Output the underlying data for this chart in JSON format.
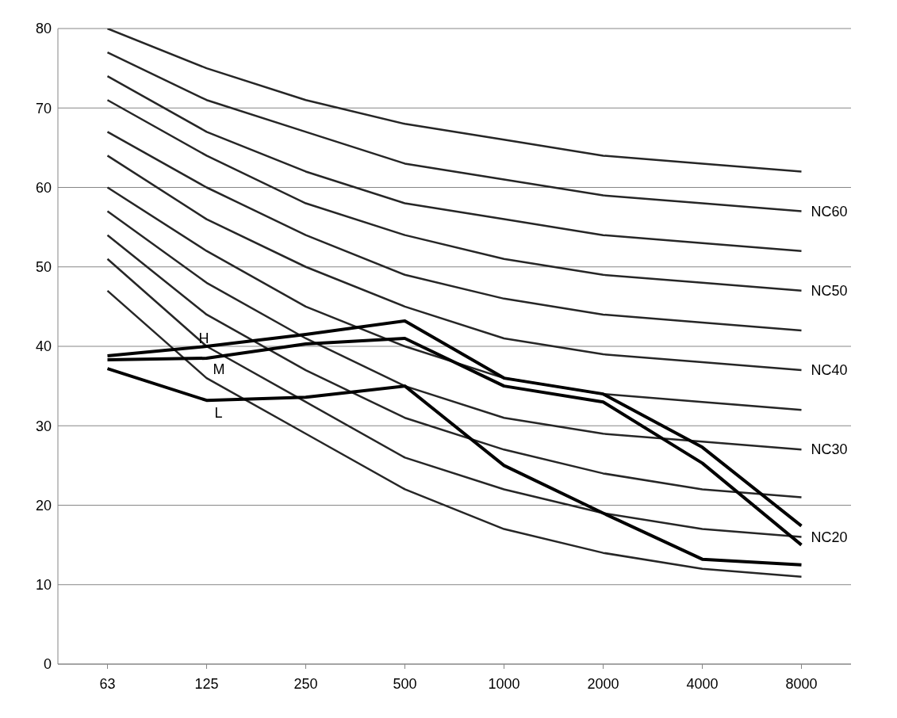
{
  "chart_data": {
    "type": "line",
    "categories": [
      "63",
      "125",
      "250",
      "500",
      "1000",
      "2000",
      "4000",
      "8000"
    ],
    "series": [
      {
        "color": "#262626",
        "values": [
          80,
          75,
          71,
          68,
          66,
          64,
          63,
          62
        ]
      },
      {
        "name": "NC60",
        "color": "#262626",
        "values": [
          77,
          71,
          67,
          63,
          61,
          59,
          58,
          57
        ]
      },
      {
        "color": "#262626",
        "values": [
          74,
          67,
          62,
          58,
          56,
          54,
          53,
          52
        ]
      },
      {
        "name": "NC50",
        "color": "#262626",
        "values": [
          71,
          64,
          58,
          54,
          51,
          49,
          48,
          47
        ]
      },
      {
        "color": "#262626",
        "values": [
          67,
          60,
          54,
          49,
          46,
          44,
          43,
          42
        ]
      },
      {
        "name": "NC40",
        "color": "#262626",
        "values": [
          64,
          56,
          50,
          45,
          41,
          39,
          38,
          37
        ]
      },
      {
        "color": "#262626",
        "values": [
          60,
          52,
          45,
          40,
          36,
          34,
          33,
          32
        ]
      },
      {
        "name": "NC30",
        "color": "#262626",
        "values": [
          57,
          48,
          41,
          35,
          31,
          29,
          28,
          27
        ]
      },
      {
        "color": "#262626",
        "values": [
          54,
          44,
          37,
          31,
          27,
          24,
          22,
          21
        ]
      },
      {
        "name": "NC20",
        "color": "#262626",
        "values": [
          51,
          40,
          33,
          26,
          22,
          19,
          17,
          16
        ]
      },
      {
        "color": "#262626",
        "values": [
          47,
          36,
          29,
          22,
          17,
          14,
          12,
          11
        ]
      },
      {
        "name": "H",
        "color": "#000000",
        "values": [
          38.8,
          40,
          41.5,
          43.2,
          36,
          34,
          27.3,
          17.4
        ]
      },
      {
        "name": "M",
        "color": "#000000",
        "values": [
          38.3,
          38.5,
          40.3,
          41,
          35,
          33,
          25.3,
          15
        ]
      },
      {
        "name": "L",
        "color": "#000000",
        "values": [
          37.2,
          33.2,
          33.6,
          35,
          25,
          19,
          13.2,
          12.5
        ]
      }
    ],
    "ylim": [
      0,
      80
    ],
    "yticks": [
      0,
      10,
      20,
      30,
      40,
      50,
      60,
      70,
      80
    ],
    "grid": "y",
    "marker": "none",
    "line_style": "solid"
  }
}
